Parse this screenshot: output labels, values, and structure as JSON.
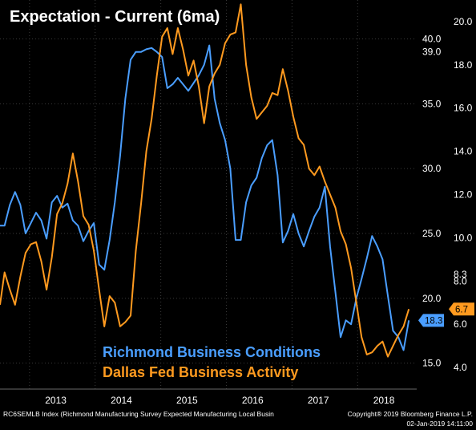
{
  "chart_data": {
    "type": "line",
    "title": "Expectation - Current (6ma)",
    "x_ticks": [
      "2013",
      "2014",
      "2015",
      "2016",
      "2017",
      "2018"
    ],
    "x_range": [
      2012.55,
      2018.9
    ],
    "grid": true,
    "left_axis": {
      "range": [
        13.0,
        43.0
      ],
      "ticks": [
        {
          "value": 40.0,
          "label": "40.0"
        },
        {
          "value": 35.0,
          "label": "35.0"
        },
        {
          "value": 30.0,
          "label": "30.0"
        },
        {
          "value": 25.0,
          "label": "25.0"
        },
        {
          "value": 20.0,
          "label": "20.0"
        },
        {
          "value": 15.0,
          "label": "15.0"
        }
      ]
    },
    "right_axis": {
      "range": [
        3.0,
        21.0
      ],
      "ticks": [
        {
          "value": 20.0,
          "label": "20.0"
        },
        {
          "value": 18.0,
          "label": "18.0"
        },
        {
          "value": 16.0,
          "label": "16.0"
        },
        {
          "value": 14.0,
          "label": "14.0"
        },
        {
          "value": 12.0,
          "label": "12.0"
        },
        {
          "value": 10.0,
          "label": "10.0"
        },
        {
          "value": 8.0,
          "label": "8.0"
        },
        {
          "value": 6.0,
          "label": "6.0"
        },
        {
          "value": 4.0,
          "label": "4.0"
        }
      ]
    },
    "axis_labels_extra": [
      {
        "axis": "left",
        "value": 39.0,
        "label": "39.0"
      },
      {
        "axis": "right",
        "value": 8.3,
        "label": "8.3"
      }
    ],
    "series": [
      {
        "name": "Richmond Business Conditions",
        "axis": "left",
        "color": "#4a9eff",
        "last_label": "18.3",
        "points": [
          [
            2012.55,
            25.6
          ],
          [
            2012.62,
            25.6
          ],
          [
            2012.7,
            27.2
          ],
          [
            2012.78,
            28.2
          ],
          [
            2012.86,
            27.2
          ],
          [
            2012.94,
            25.0
          ],
          [
            2013.02,
            25.8
          ],
          [
            2013.1,
            26.6
          ],
          [
            2013.18,
            26.0
          ],
          [
            2013.26,
            24.6
          ],
          [
            2013.34,
            27.4
          ],
          [
            2013.42,
            27.9
          ],
          [
            2013.5,
            27.0
          ],
          [
            2013.58,
            27.3
          ],
          [
            2013.66,
            26.0
          ],
          [
            2013.74,
            25.6
          ],
          [
            2013.82,
            24.4
          ],
          [
            2013.9,
            25.2
          ],
          [
            2013.98,
            25.8
          ],
          [
            2014.06,
            22.6
          ],
          [
            2014.14,
            22.2
          ],
          [
            2014.22,
            24.5
          ],
          [
            2014.3,
            27.4
          ],
          [
            2014.38,
            31.0
          ],
          [
            2014.46,
            35.4
          ],
          [
            2014.54,
            38.4
          ],
          [
            2014.62,
            39.0
          ],
          [
            2014.7,
            39.0
          ],
          [
            2014.78,
            39.2
          ],
          [
            2014.86,
            39.3
          ],
          [
            2014.94,
            39.0
          ],
          [
            2015.02,
            38.6
          ],
          [
            2015.1,
            36.2
          ],
          [
            2015.18,
            36.5
          ],
          [
            2015.26,
            37.0
          ],
          [
            2015.34,
            36.5
          ],
          [
            2015.42,
            36.0
          ],
          [
            2015.5,
            36.6
          ],
          [
            2015.58,
            37.2
          ],
          [
            2015.66,
            38.0
          ],
          [
            2015.74,
            39.5
          ],
          [
            2015.82,
            35.4
          ],
          [
            2015.9,
            33.5
          ],
          [
            2015.98,
            32.2
          ],
          [
            2016.06,
            30.0
          ],
          [
            2016.14,
            24.5
          ],
          [
            2016.22,
            24.5
          ],
          [
            2016.3,
            27.4
          ],
          [
            2016.38,
            28.7
          ],
          [
            2016.46,
            29.3
          ],
          [
            2016.54,
            30.8
          ],
          [
            2016.62,
            31.8
          ],
          [
            2016.7,
            32.2
          ],
          [
            2016.78,
            29.5
          ],
          [
            2016.86,
            24.3
          ],
          [
            2016.94,
            25.2
          ],
          [
            2017.02,
            26.5
          ],
          [
            2017.1,
            25.0
          ],
          [
            2017.18,
            24.0
          ],
          [
            2017.26,
            25.2
          ],
          [
            2017.34,
            26.3
          ],
          [
            2017.42,
            27.0
          ],
          [
            2017.5,
            28.6
          ],
          [
            2017.58,
            24.0
          ],
          [
            2017.66,
            20.5
          ],
          [
            2017.74,
            17.0
          ],
          [
            2017.82,
            18.3
          ],
          [
            2017.9,
            18.0
          ],
          [
            2017.98,
            20.0
          ],
          [
            2018.06,
            21.5
          ],
          [
            2018.14,
            23.1
          ],
          [
            2018.22,
            24.8
          ],
          [
            2018.3,
            24.0
          ],
          [
            2018.38,
            23.0
          ],
          [
            2018.46,
            20.2
          ],
          [
            2018.54,
            17.5
          ],
          [
            2018.62,
            17.0
          ],
          [
            2018.7,
            16.0
          ],
          [
            2018.78,
            18.3
          ]
        ]
      },
      {
        "name": "Dallas Fed Business Activity",
        "axis": "right",
        "color": "#ff9a1f",
        "last_label": "6.7",
        "points": [
          [
            2012.55,
            6.9
          ],
          [
            2012.62,
            8.4
          ],
          [
            2012.7,
            7.6
          ],
          [
            2012.78,
            6.9
          ],
          [
            2012.86,
            8.2
          ],
          [
            2012.94,
            9.3
          ],
          [
            2013.02,
            9.7
          ],
          [
            2013.1,
            9.8
          ],
          [
            2013.18,
            8.9
          ],
          [
            2013.26,
            7.6
          ],
          [
            2013.34,
            9.1
          ],
          [
            2013.42,
            11.1
          ],
          [
            2013.5,
            11.6
          ],
          [
            2013.58,
            12.5
          ],
          [
            2013.66,
            13.9
          ],
          [
            2013.74,
            12.6
          ],
          [
            2013.82,
            11.0
          ],
          [
            2013.9,
            10.6
          ],
          [
            2013.98,
            9.4
          ],
          [
            2014.06,
            7.6
          ],
          [
            2014.14,
            5.9
          ],
          [
            2014.22,
            7.3
          ],
          [
            2014.3,
            7.0
          ],
          [
            2014.38,
            5.9
          ],
          [
            2014.46,
            6.1
          ],
          [
            2014.54,
            6.4
          ],
          [
            2014.62,
            9.4
          ],
          [
            2014.7,
            11.6
          ],
          [
            2014.78,
            14.0
          ],
          [
            2014.86,
            15.5
          ],
          [
            2014.94,
            17.5
          ],
          [
            2015.02,
            19.3
          ],
          [
            2015.1,
            19.7
          ],
          [
            2015.18,
            18.5
          ],
          [
            2015.26,
            19.7
          ],
          [
            2015.34,
            18.7
          ],
          [
            2015.42,
            17.5
          ],
          [
            2015.5,
            18.2
          ],
          [
            2015.58,
            17.0
          ],
          [
            2015.66,
            15.3
          ],
          [
            2015.74,
            17.0
          ],
          [
            2015.82,
            17.6
          ],
          [
            2015.9,
            18.0
          ],
          [
            2015.98,
            19.0
          ],
          [
            2016.06,
            19.4
          ],
          [
            2016.14,
            19.5
          ],
          [
            2016.22,
            20.8
          ],
          [
            2016.3,
            18.0
          ],
          [
            2016.38,
            16.5
          ],
          [
            2016.46,
            15.5
          ],
          [
            2016.54,
            15.8
          ],
          [
            2016.62,
            16.1
          ],
          [
            2016.7,
            16.7
          ],
          [
            2016.78,
            16.6
          ],
          [
            2016.86,
            17.8
          ],
          [
            2016.94,
            16.8
          ],
          [
            2017.02,
            15.6
          ],
          [
            2017.1,
            14.6
          ],
          [
            2017.18,
            14.3
          ],
          [
            2017.26,
            13.2
          ],
          [
            2017.34,
            12.9
          ],
          [
            2017.42,
            13.3
          ],
          [
            2017.5,
            12.6
          ],
          [
            2017.58,
            12.0
          ],
          [
            2017.66,
            11.4
          ],
          [
            2017.74,
            10.3
          ],
          [
            2017.82,
            9.7
          ],
          [
            2017.9,
            8.6
          ],
          [
            2017.98,
            7.0
          ],
          [
            2018.06,
            5.4
          ],
          [
            2018.14,
            4.6
          ],
          [
            2018.22,
            4.7
          ],
          [
            2018.3,
            5.0
          ],
          [
            2018.38,
            5.2
          ],
          [
            2018.46,
            4.5
          ],
          [
            2018.54,
            5.0
          ],
          [
            2018.62,
            5.5
          ],
          [
            2018.7,
            5.9
          ],
          [
            2018.78,
            6.7
          ]
        ]
      }
    ],
    "legend": {
      "placement": "bottom-center"
    }
  },
  "footer": {
    "left": "RC6SEMLB Index (Richmond Manufacturing Survey Expected Manufacturing Local Busin",
    "right1": "Copyright® 2019 Bloomberg Finance L.P.",
    "right2": "02-Jan-2019 14:11:00"
  }
}
